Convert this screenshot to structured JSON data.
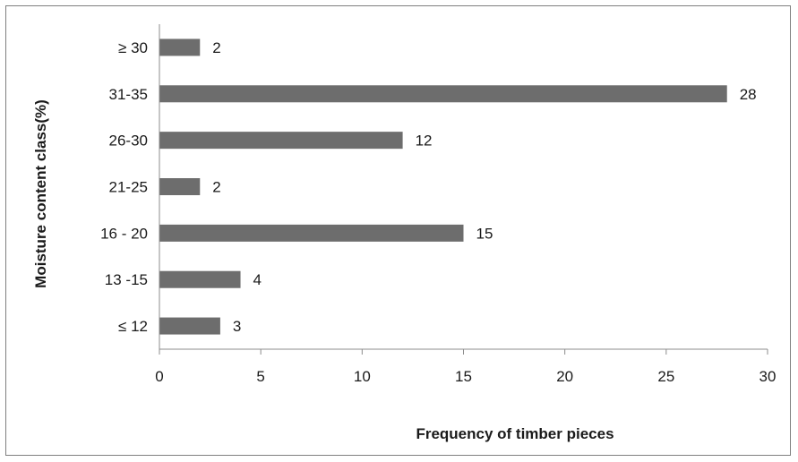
{
  "chart_data": {
    "type": "bar",
    "orientation": "horizontal",
    "categories": [
      "≥ 30",
      "31-35",
      "26-30",
      "21-25",
      "16 - 20",
      "13 -15",
      "≤ 12"
    ],
    "values": [
      2,
      28,
      12,
      2,
      15,
      4,
      3
    ],
    "data_labels": [
      "2",
      "28",
      "12",
      "2",
      "15",
      "4",
      "3"
    ],
    "xlabel": "Frequency of timber pieces",
    "ylabel": "Moisture content class(%)",
    "xlim": [
      0,
      30
    ],
    "xticks": [
      "0",
      "5",
      "10",
      "15",
      "20",
      "25",
      "30"
    ],
    "grid": false,
    "legend": "none",
    "bar_color": "#6d6d6d"
  }
}
